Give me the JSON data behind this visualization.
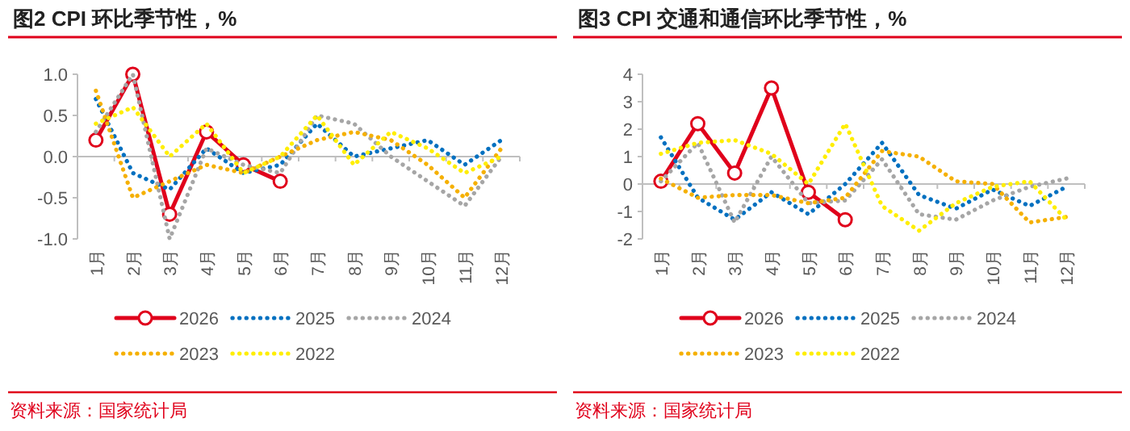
{
  "chart_data": [
    {
      "type": "line",
      "title": "图2  CPI 环比季节性，%",
      "categories": [
        "1月",
        "2月",
        "3月",
        "4月",
        "5月",
        "6月",
        "7月",
        "8月",
        "9月",
        "10月",
        "11月",
        "12月"
      ],
      "ylim": [
        -1,
        1
      ],
      "yticks": [
        {
          "value": -1,
          "label": "-1.0"
        },
        {
          "value": -0.5,
          "label": "-0.5"
        },
        {
          "value": 0,
          "label": "0.0"
        },
        {
          "value": 0.5,
          "label": "0.5"
        },
        {
          "value": 1,
          "label": "1.0"
        }
      ],
      "legend": "bottom",
      "annotations": [
        "资料来源：国家统计局"
      ],
      "series": [
        {
          "name": "2026",
          "color": "#e0001b",
          "marker": "circle",
          "line_style": "solid",
          "values": [
            0.2,
            1.0,
            -0.7,
            0.3,
            -0.1,
            -0.3,
            null,
            null,
            null,
            null,
            null,
            null
          ]
        },
        {
          "name": "2025",
          "color": "#0070c0",
          "marker": "none",
          "line_style": "dotted",
          "values": [
            0.7,
            -0.2,
            -0.4,
            0.1,
            -0.2,
            -0.1,
            0.4,
            0.0,
            0.1,
            0.2,
            -0.1,
            0.2
          ]
        },
        {
          "name": "2024",
          "color": "#a6a6a6",
          "marker": "none",
          "line_style": "dotted",
          "values": [
            0.3,
            1.0,
            -1.0,
            0.1,
            -0.1,
            -0.2,
            0.5,
            0.4,
            0.0,
            -0.3,
            -0.6,
            0.0
          ]
        },
        {
          "name": "2023",
          "color": "#f5b000",
          "marker": "none",
          "line_style": "dotted",
          "values": [
            0.8,
            -0.5,
            -0.3,
            -0.1,
            -0.2,
            0.0,
            0.2,
            0.3,
            0.2,
            -0.1,
            -0.5,
            0.1
          ]
        },
        {
          "name": "2022",
          "color": "#ffee00",
          "marker": "none",
          "line_style": "dotted",
          "values": [
            0.4,
            0.6,
            0.0,
            0.4,
            -0.2,
            0.0,
            0.5,
            -0.1,
            0.3,
            0.1,
            -0.2,
            0.0
          ]
        }
      ]
    },
    {
      "type": "line",
      "title": "图3  CPI 交通和通信环比季节性，%",
      "categories": [
        "1月",
        "2月",
        "3月",
        "4月",
        "5月",
        "6月",
        "7月",
        "8月",
        "9月",
        "10月",
        "11月",
        "12月"
      ],
      "ylim": [
        -2,
        4
      ],
      "yticks": [
        -2,
        -1,
        0,
        1,
        2,
        3,
        4
      ],
      "legend": "bottom",
      "annotations": [
        "资料来源：国家统计局"
      ],
      "series": [
        {
          "name": "2026",
          "color": "#e0001b",
          "marker": "circle",
          "line_style": "solid",
          "values": [
            0.1,
            2.2,
            0.4,
            3.5,
            -0.3,
            -1.3,
            null,
            null,
            null,
            null,
            null,
            null
          ]
        },
        {
          "name": "2025",
          "color": "#0070c0",
          "marker": "none",
          "line_style": "dotted",
          "values": [
            1.7,
            -0.5,
            -1.3,
            -0.3,
            -1.1,
            0.0,
            1.5,
            -0.4,
            -0.9,
            -0.2,
            -0.8,
            -0.1
          ]
        },
        {
          "name": "2024",
          "color": "#a6a6a6",
          "marker": "none",
          "line_style": "dotted",
          "values": [
            0.1,
            1.5,
            -1.4,
            1.0,
            -0.7,
            -0.6,
            0.9,
            -1.1,
            -1.3,
            -0.6,
            -0.1,
            0.2
          ]
        },
        {
          "name": "2023",
          "color": "#f5b000",
          "marker": "none",
          "line_style": "dotted",
          "values": [
            0.2,
            -0.5,
            -0.4,
            -0.4,
            -0.7,
            -0.5,
            1.2,
            1.0,
            0.1,
            0.0,
            -1.4,
            -1.2
          ]
        },
        {
          "name": "2022",
          "color": "#ffee00",
          "marker": "none",
          "line_style": "dotted",
          "values": [
            1.1,
            1.5,
            1.6,
            1.1,
            0.0,
            2.2,
            -0.8,
            -1.7,
            -0.7,
            -0.1,
            0.1,
            -1.3
          ]
        }
      ]
    }
  ]
}
